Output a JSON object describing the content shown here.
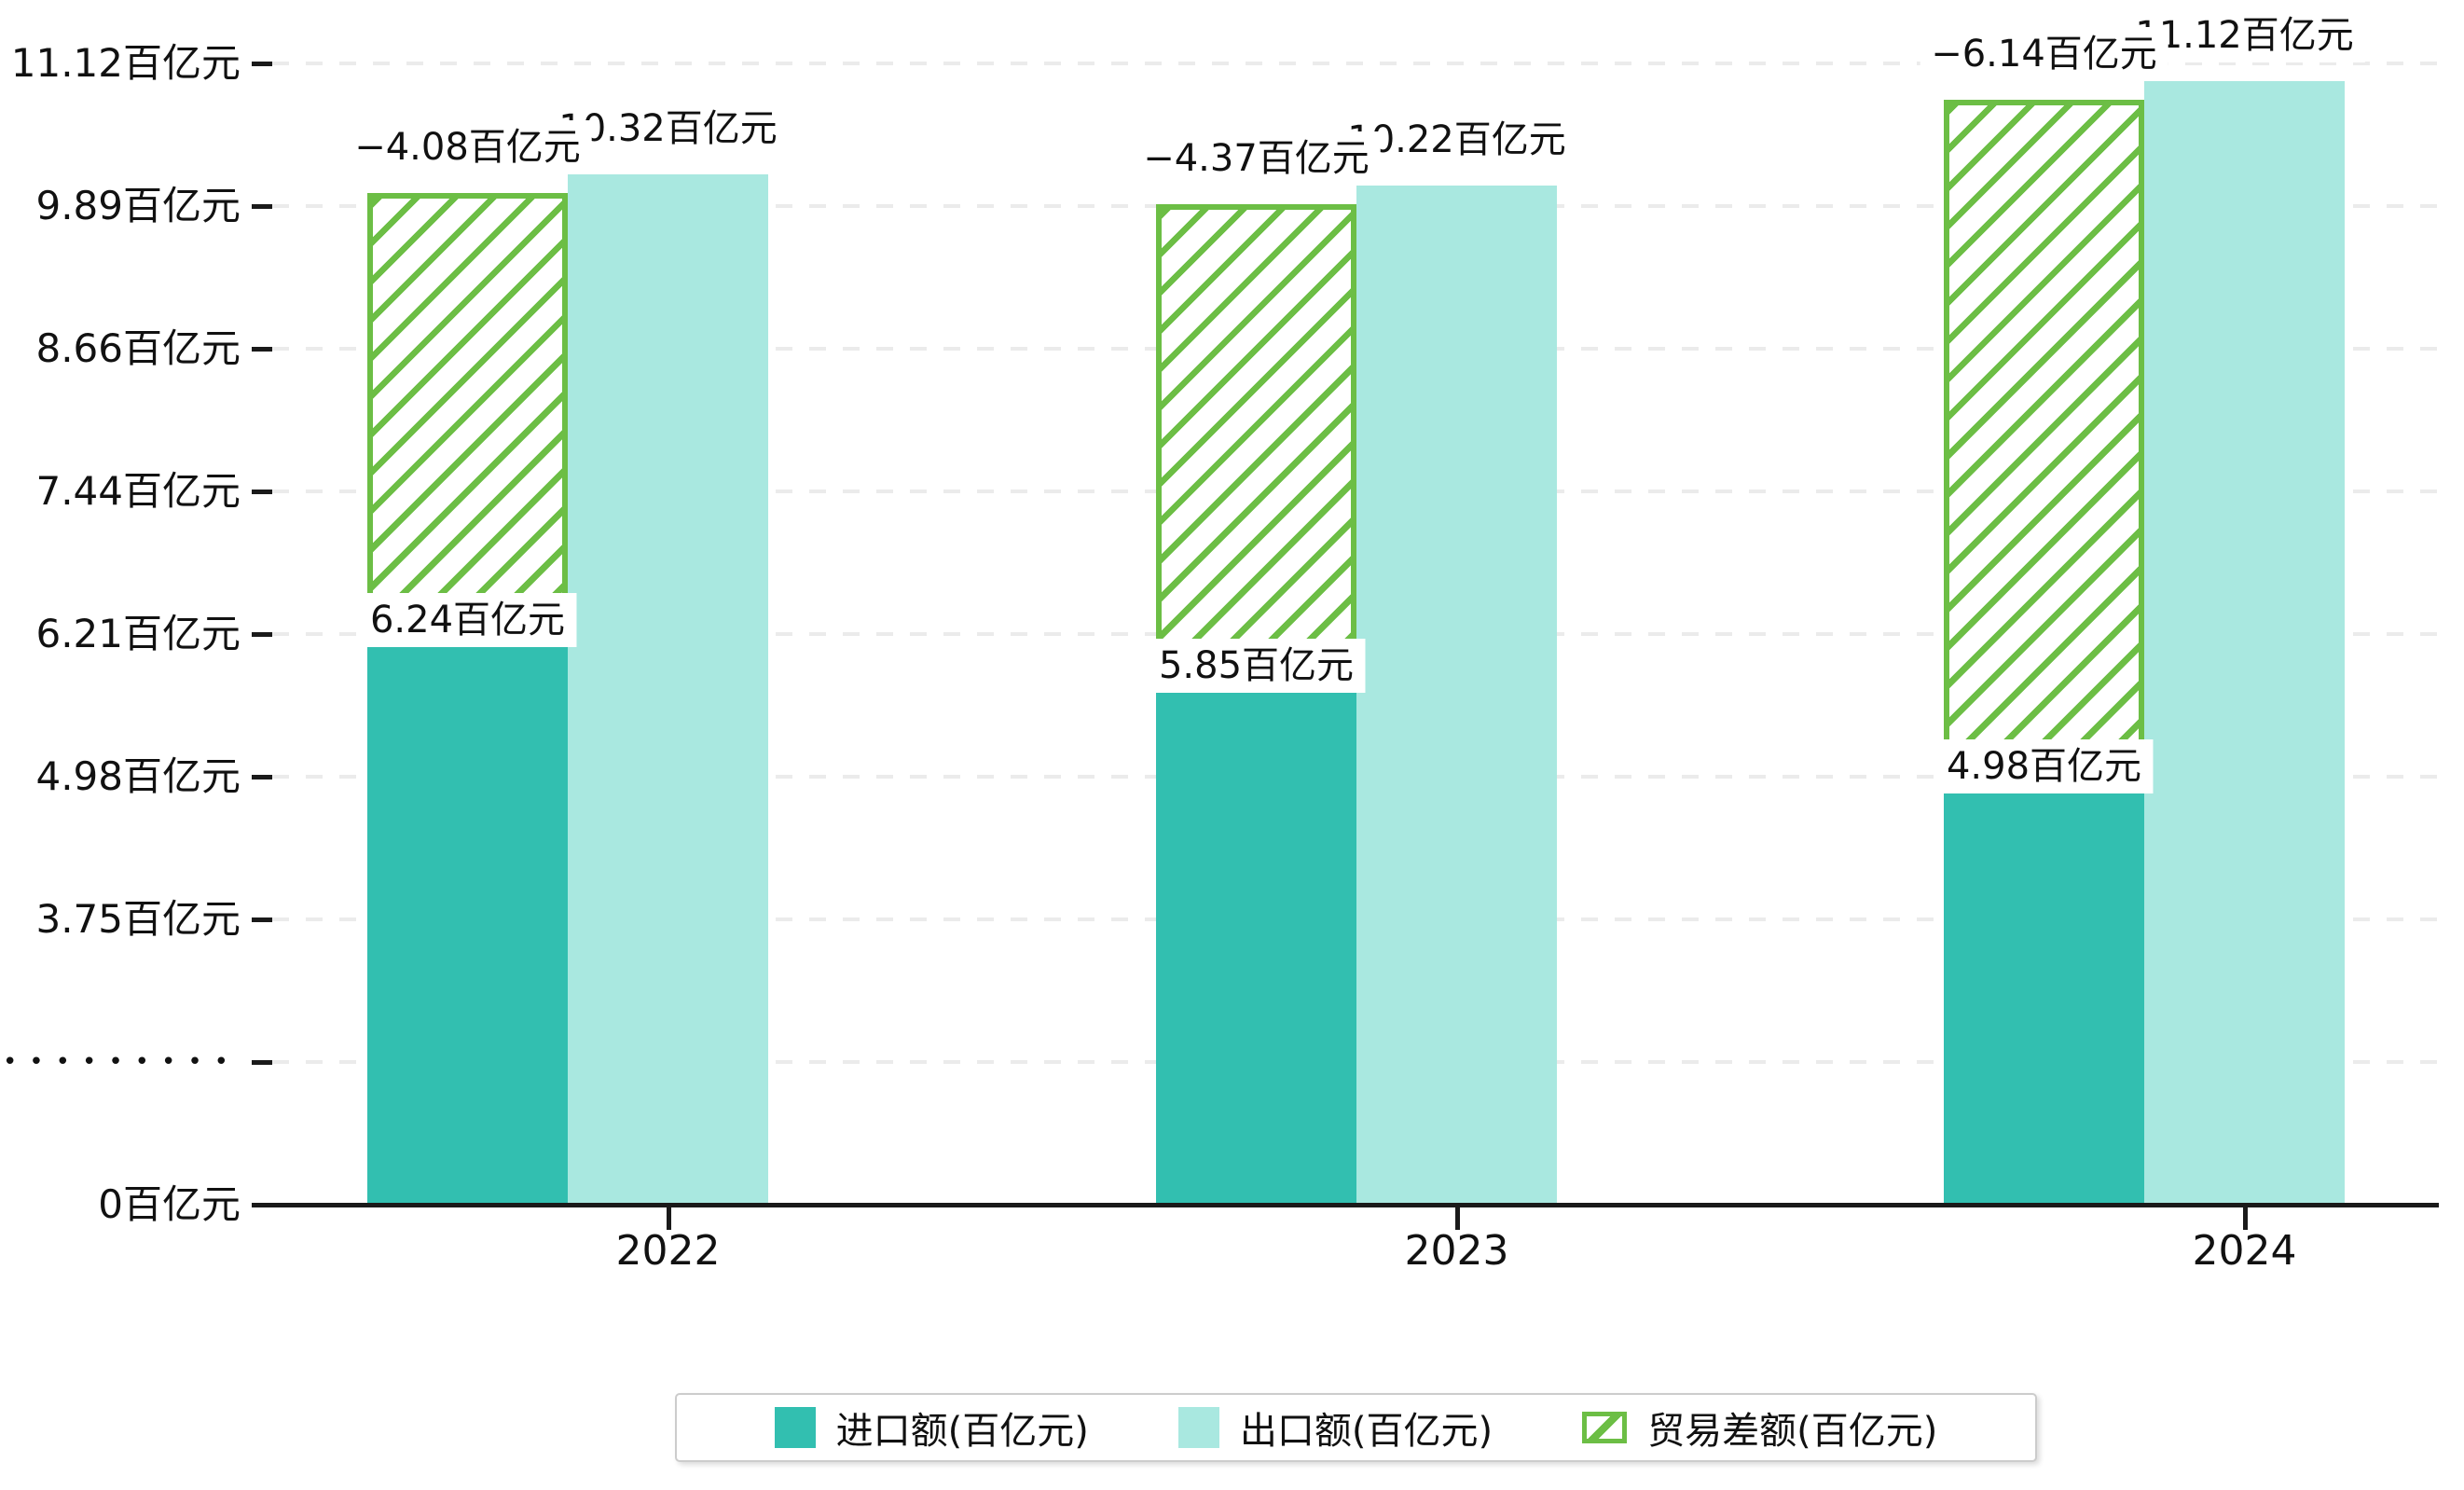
{
  "chart_data": {
    "type": "bar",
    "categories": [
      "2022",
      "2023",
      "2024"
    ],
    "series": [
      {
        "name": "进口额(百亿元)",
        "role": "import",
        "color": "#32BFB0",
        "values": [
          6.24,
          5.85,
          4.98
        ],
        "labels": [
          "6.24百亿元",
          "5.85百亿元",
          "4.98百亿元"
        ]
      },
      {
        "name": "出口额(百亿元)",
        "role": "export",
        "color": "#A9E8E0",
        "values": [
          10.32,
          10.22,
          11.12
        ],
        "labels": [
          "10.32百亿元",
          "10.22百亿元",
          "11.12百亿元"
        ]
      },
      {
        "name": "贸易差额(百亿元)",
        "role": "trade-balance",
        "color": "#6CBE45",
        "style": "hatched-outline",
        "values": [
          -4.08,
          -4.37,
          -6.14
        ],
        "labels": [
          "−4.08百亿元",
          "−4.37百亿元",
          "−6.14百亿元"
        ]
      }
    ],
    "y_axis": {
      "unit": "百亿元",
      "ticks": [
        "11.12百亿元",
        "9.89百亿元",
        "8.66百亿元",
        "7.44百亿元",
        "6.21百亿元",
        "4.98百亿元",
        "3.75百亿元",
        "•••••••••",
        "0百亿元"
      ],
      "tick_values": [
        11.12,
        9.89,
        8.66,
        7.44,
        6.21,
        4.98,
        3.75,
        null,
        0
      ],
      "break_tick_index": 7,
      "has_axis_break": true,
      "grid": "dashed horizontal"
    },
    "x_axis": {
      "ticks": [
        "2022",
        "2023",
        "2024"
      ]
    },
    "legend_position": "bottom",
    "colors": {
      "import_bar": "#32BFB0",
      "export_bar": "#A9E8E0",
      "balance_hatch": "#6CBE45",
      "gridline": "#EBEBEB",
      "axis": "#1a1a1a",
      "text": "#111111",
      "label_background": "#ffffff"
    }
  }
}
